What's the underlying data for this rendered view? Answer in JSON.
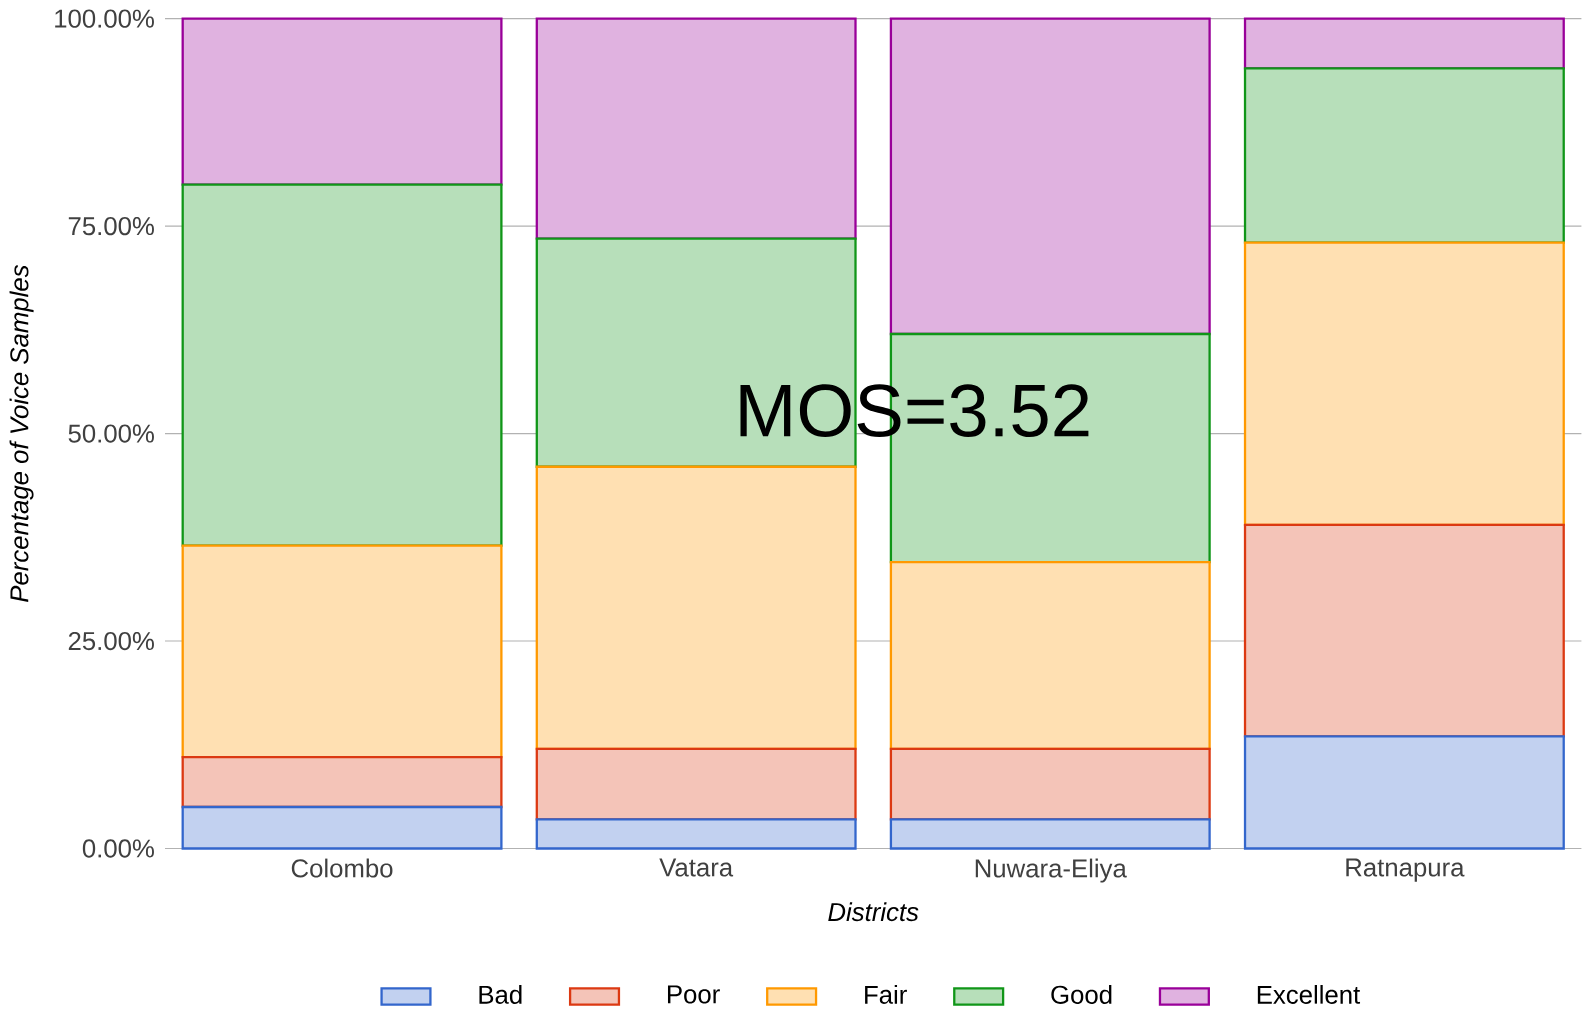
{
  "chart_data": {
    "type": "bar",
    "stacked": true,
    "xlabel": "Districts",
    "ylabel": "Percentage of Voice Samples",
    "categories": [
      "Colombo",
      "Vatara",
      "Nuwara-Eliya",
      "Ratnapura"
    ],
    "series": [
      {
        "name": "Bad",
        "color": "#3366cc",
        "values": [
          5,
          3.5,
          3.5,
          13.5
        ]
      },
      {
        "name": "Poor",
        "color": "#dc3912",
        "values": [
          6,
          8.5,
          8.5,
          25.5
        ]
      },
      {
        "name": "Fair",
        "color": "#ff9900",
        "values": [
          25.5,
          34,
          22.5,
          34
        ]
      },
      {
        "name": "Good",
        "color": "#109618",
        "values": [
          43.5,
          27.5,
          27.5,
          21
        ]
      },
      {
        "name": "Excellent",
        "color": "#990099",
        "values": [
          20,
          26.5,
          38,
          6
        ]
      }
    ],
    "ylim": [
      0,
      100
    ],
    "yticks": [
      {
        "value": 0,
        "label": "0.00%"
      },
      {
        "value": 25,
        "label": "25.00%"
      },
      {
        "value": 50,
        "label": "50.00%"
      },
      {
        "value": 75,
        "label": "75.00%"
      },
      {
        "value": 100,
        "label": "100.00%"
      }
    ],
    "grid": "y",
    "legend": "bottom",
    "annotations": [
      "MOS=3.52"
    ]
  }
}
